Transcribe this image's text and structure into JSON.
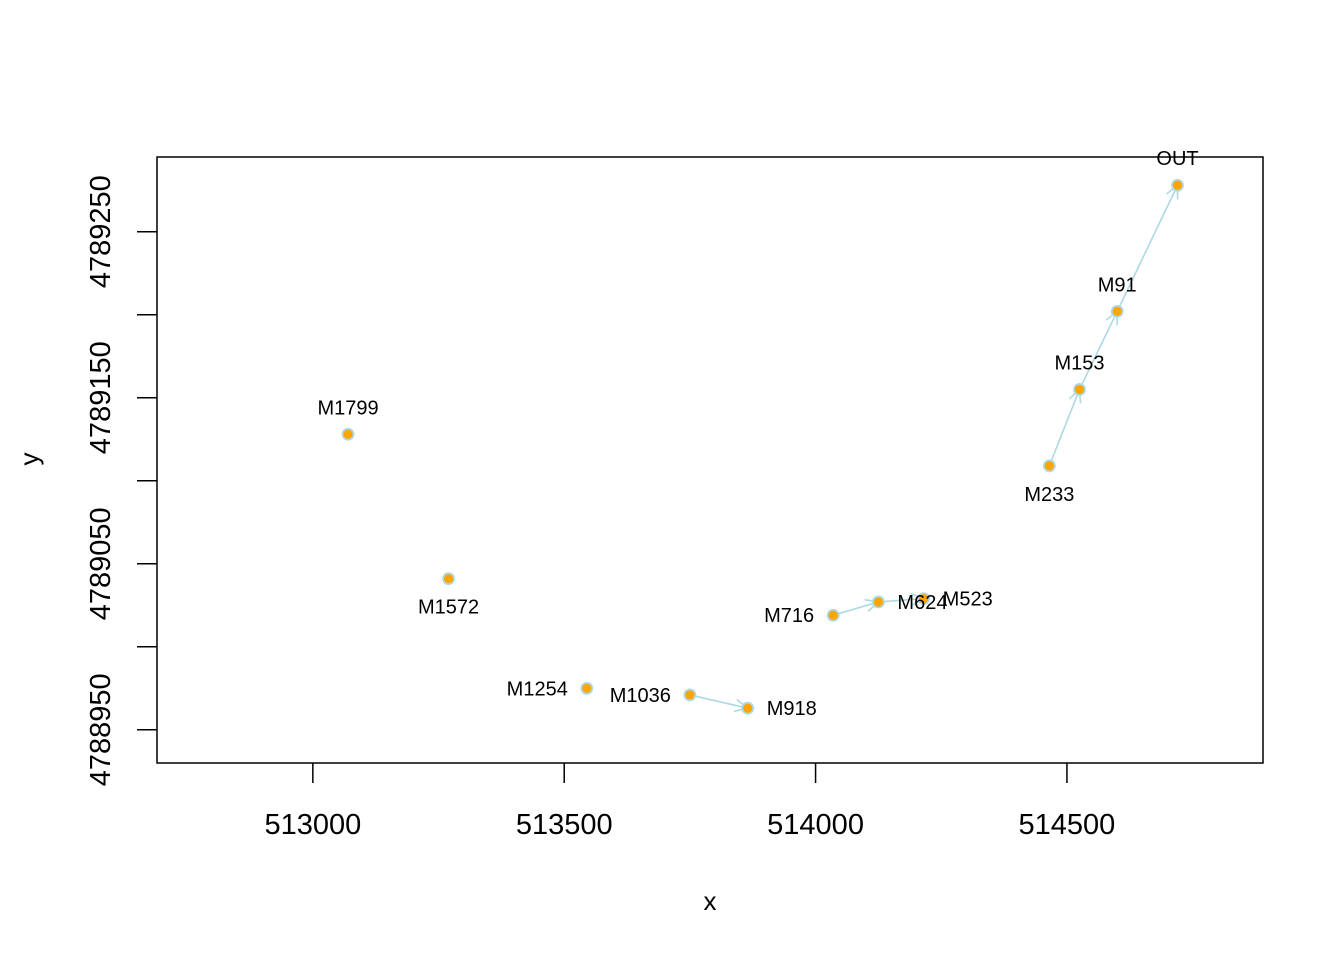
{
  "colors": {
    "point_fill": "#FFA500",
    "point_border": "#ADD8E6",
    "arrow": "#ADD8E6",
    "axes": "#000000",
    "text": "#000000"
  },
  "chart_data": {
    "type": "scatter",
    "title": "",
    "xlabel": "x",
    "ylabel": "y",
    "xlim": [
      512690,
      514890
    ],
    "ylim": [
      4788930,
      4789295
    ],
    "xticks": [
      513000,
      513500,
      514000,
      514500
    ],
    "xtick_labels": [
      "513000",
      "513500",
      "514000",
      "514500"
    ],
    "yticks": [
      4788950,
      4789000,
      4789050,
      4789100,
      4789150,
      4789200,
      4789250
    ],
    "ytick_labels": [
      "4788950",
      "",
      "4789050",
      "",
      "4789150",
      "",
      "4789250"
    ],
    "grid": false,
    "legend": false,
    "points": [
      {
        "label": "OUT",
        "x": 514720,
        "y": 4789278,
        "label_pos": "above"
      },
      {
        "label": "M91",
        "x": 514600,
        "y": 4789202,
        "label_pos": "above"
      },
      {
        "label": "M153",
        "x": 514525,
        "y": 4789155,
        "label_pos": "above"
      },
      {
        "label": "M233",
        "x": 514465,
        "y": 4789109,
        "label_pos": "below"
      },
      {
        "label": "M523",
        "x": 514215,
        "y": 4789029,
        "label_pos": "right"
      },
      {
        "label": "M624",
        "x": 514125,
        "y": 4789027,
        "label_pos": "right"
      },
      {
        "label": "M716",
        "x": 514035,
        "y": 4789019,
        "label_pos": "left"
      },
      {
        "label": "M918",
        "x": 513865,
        "y": 4788963,
        "label_pos": "right"
      },
      {
        "label": "M1036",
        "x": 513750,
        "y": 4788971,
        "label_pos": "left"
      },
      {
        "label": "M1254",
        "x": 513545,
        "y": 4788975,
        "label_pos": "left"
      },
      {
        "label": "M1572",
        "x": 513270,
        "y": 4789041,
        "label_pos": "below"
      },
      {
        "label": "M1799",
        "x": 513070,
        "y": 4789128,
        "label_pos": "above"
      }
    ],
    "arrows": [
      {
        "from": "M233",
        "to": "M153"
      },
      {
        "from": "M153",
        "to": "M91"
      },
      {
        "from": "M91",
        "to": "OUT"
      },
      {
        "from": "M716",
        "to": "M624"
      },
      {
        "from": "M624",
        "to": "M523"
      },
      {
        "from": "M1036",
        "to": "M918"
      }
    ]
  }
}
